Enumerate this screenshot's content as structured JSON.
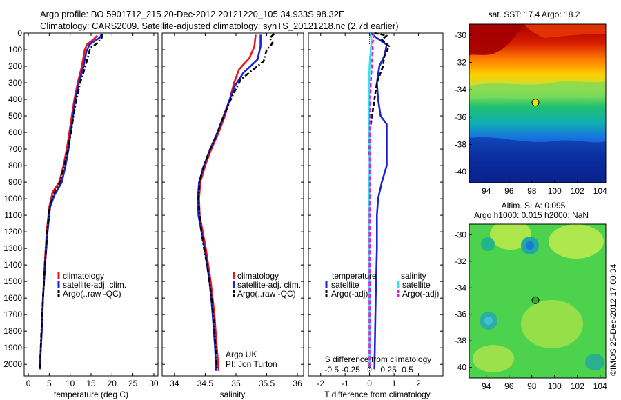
{
  "header": {
    "title_line1": "Argo profile: BO 5901712_215 20-Dec-2012 20121220_105 34.933S 98.32E",
    "title_line2": "Climatology: CARS2009. Satellite-adjusted climatology: synTS_20121218.nc (2.7d earlier)"
  },
  "colors": {
    "climatology": "#e8141e",
    "satellite": "#1a23d4",
    "argo": "#000000",
    "cyan": "#2ee6e6",
    "magenta": "#e61ee6"
  },
  "chart_data": [
    {
      "type": "line",
      "id": "temperature",
      "xlabel": "temperature (deg C)",
      "ylabel": "",
      "xlim": [
        -1,
        31
      ],
      "ylim": [
        2070,
        0
      ],
      "xticks": [
        0,
        5,
        10,
        15,
        20,
        25,
        30
      ],
      "yticks": [
        0,
        100,
        200,
        300,
        400,
        500,
        600,
        700,
        800,
        900,
        1000,
        1100,
        1200,
        1300,
        1400,
        1500,
        1600,
        1700,
        1800,
        1900,
        2000
      ],
      "legend": {
        "placement": "lower-middle",
        "entries": [
          "climatology",
          "satellite-adj. clim.",
          "Argo(..raw -QC)"
        ]
      },
      "series": [
        {
          "name": "climatology",
          "color_key": "climatology",
          "style": "solid",
          "points": [
            [
              16.5,
              15
            ],
            [
              15.5,
              40
            ],
            [
              14,
              70
            ],
            [
              13.5,
              100
            ],
            [
              12.8,
              200
            ],
            [
              11.8,
              300
            ],
            [
              11,
              400
            ],
            [
              10.4,
              500
            ],
            [
              9.8,
              600
            ],
            [
              9.2,
              700
            ],
            [
              8.4,
              800
            ],
            [
              7.4,
              900
            ],
            [
              5.8,
              960
            ],
            [
              5,
              1050
            ],
            [
              4.4,
              1200
            ],
            [
              3.9,
              1400
            ],
            [
              3.5,
              1600
            ],
            [
              3.2,
              1800
            ],
            [
              2.9,
              1950
            ],
            [
              2.8,
              2030
            ]
          ]
        },
        {
          "name": "satellite-adj. clim.",
          "color_key": "satellite",
          "style": "solid",
          "points": [
            [
              17.5,
              5
            ],
            [
              17.2,
              25
            ],
            [
              16,
              45
            ],
            [
              14.6,
              70
            ],
            [
              13.9,
              110
            ],
            [
              13.2,
              200
            ],
            [
              12.1,
              300
            ],
            [
              11.2,
              400
            ],
            [
              10.7,
              500
            ],
            [
              10.1,
              600
            ],
            [
              9.6,
              700
            ],
            [
              8.9,
              800
            ],
            [
              8,
              900
            ],
            [
              6.2,
              980
            ],
            [
              5.2,
              1050
            ],
            [
              4.6,
              1200
            ],
            [
              4,
              1400
            ],
            [
              3.5,
              1600
            ],
            [
              3.2,
              1800
            ],
            [
              2.9,
              1950
            ],
            [
              2.8,
              2030
            ]
          ]
        },
        {
          "name": "Argo(..raw -QC)",
          "color_key": "argo",
          "style": "dashdot",
          "points": [
            [
              17.8,
              5
            ],
            [
              17.5,
              30
            ],
            [
              16.5,
              60
            ],
            [
              14.8,
              90
            ],
            [
              14.2,
              150
            ],
            [
              13.4,
              220
            ],
            [
              12.4,
              300
            ],
            [
              11.5,
              400
            ],
            [
              10.8,
              500
            ],
            [
              10.2,
              600
            ],
            [
              9.5,
              700
            ],
            [
              8.6,
              800
            ],
            [
              7.6,
              900
            ],
            [
              6,
              975
            ],
            [
              5.1,
              1050
            ],
            [
              4.5,
              1200
            ],
            [
              4,
              1400
            ],
            [
              3.5,
              1600
            ],
            [
              3.1,
              1800
            ],
            [
              2.9,
              1950
            ],
            [
              2.8,
              2020
            ]
          ]
        }
      ]
    },
    {
      "type": "line",
      "id": "salinity",
      "xlabel": "salinity",
      "ylabel": "",
      "xlim": [
        33.8,
        36.1
      ],
      "ylim": [
        2070,
        0
      ],
      "xticks": [
        34,
        34.5,
        35,
        35.5,
        36
      ],
      "legend": {
        "placement": "lower-right",
        "entries": [
          "climatology",
          "satellite-adj. clim.",
          "Argo(..raw -QC)"
        ]
      },
      "annotations": [
        "Argo UK",
        "PI: Jon Turton"
      ],
      "series": [
        {
          "name": "climatology",
          "color_key": "climatology",
          "style": "solid",
          "points": [
            [
              35.32,
              10
            ],
            [
              35.3,
              80
            ],
            [
              35.22,
              150
            ],
            [
              35.05,
              220
            ],
            [
              34.97,
              300
            ],
            [
              34.9,
              400
            ],
            [
              34.82,
              500
            ],
            [
              34.72,
              600
            ],
            [
              34.6,
              700
            ],
            [
              34.5,
              800
            ],
            [
              34.42,
              900
            ],
            [
              34.4,
              1000
            ],
            [
              34.41,
              1100
            ],
            [
              34.46,
              1200
            ],
            [
              34.51,
              1300
            ],
            [
              34.55,
              1400
            ],
            [
              34.59,
              1500
            ],
            [
              34.62,
              1600
            ],
            [
              34.65,
              1700
            ],
            [
              34.67,
              1800
            ],
            [
              34.69,
              1900
            ],
            [
              34.72,
              2040
            ]
          ]
        },
        {
          "name": "satellite-adj. clim.",
          "color_key": "satellite",
          "style": "solid",
          "points": [
            [
              35.4,
              10
            ],
            [
              35.4,
              80
            ],
            [
              35.35,
              160
            ],
            [
              35.12,
              240
            ],
            [
              34.98,
              320
            ],
            [
              34.9,
              400
            ],
            [
              34.8,
              500
            ],
            [
              34.7,
              600
            ],
            [
              34.58,
              700
            ],
            [
              34.48,
              800
            ],
            [
              34.4,
              900
            ],
            [
              34.38,
              1000
            ],
            [
              34.39,
              1100
            ],
            [
              34.44,
              1200
            ],
            [
              34.49,
              1300
            ],
            [
              34.53,
              1400
            ],
            [
              34.57,
              1500
            ],
            [
              34.6,
              1600
            ],
            [
              34.62,
              1700
            ],
            [
              34.64,
              1800
            ],
            [
              34.66,
              1900
            ],
            [
              34.68,
              2040
            ]
          ]
        },
        {
          "name": "Argo(..raw -QC)",
          "color_key": "argo",
          "style": "dashdot",
          "points": [
            [
              35.62,
              5
            ],
            [
              35.55,
              30
            ],
            [
              35.6,
              60
            ],
            [
              35.5,
              100
            ],
            [
              35.45,
              170
            ],
            [
              35.28,
              220
            ],
            [
              35.08,
              280
            ],
            [
              34.98,
              350
            ],
            [
              34.88,
              430
            ],
            [
              34.78,
              520
            ],
            [
              34.68,
              620
            ],
            [
              34.56,
              720
            ],
            [
              34.46,
              820
            ],
            [
              34.41,
              900
            ],
            [
              34.39,
              1000
            ],
            [
              34.41,
              1100
            ],
            [
              34.44,
              1200
            ],
            [
              34.48,
              1300
            ],
            [
              34.53,
              1400
            ],
            [
              34.57,
              1500
            ],
            [
              34.6,
              1600
            ],
            [
              34.63,
              1700
            ],
            [
              34.65,
              1800
            ],
            [
              34.67,
              1900
            ],
            [
              34.69,
              2030
            ]
          ]
        }
      ]
    },
    {
      "type": "line",
      "id": "difference",
      "xlabel": "T difference from climatology",
      "xlabel_top": "S difference from climatology",
      "xlim": [
        -2.5,
        3
      ],
      "ylim": [
        2070,
        0
      ],
      "xticks": [
        -2,
        -1,
        0,
        1,
        2
      ],
      "xticks_top_labels": [
        "-0.5",
        "-0.25",
        "0",
        "0.25",
        "0.5"
      ],
      "legend": {
        "placement": "lower",
        "headers": [
          "temperature",
          "salinity"
        ],
        "entries": [
          "satellite",
          "Argo(-adj)",
          "satellite",
          "Argo(-adj)"
        ]
      },
      "zero_line": true,
      "series": [
        {
          "name": "temperature satellite",
          "color_key": "satellite",
          "style": "solid",
          "points": [
            [
              0.05,
              0
            ],
            [
              0.3,
              30
            ],
            [
              0.7,
              70
            ],
            [
              0.6,
              140
            ],
            [
              0.4,
              200
            ],
            [
              0.3,
              300
            ],
            [
              0.35,
              400
            ],
            [
              0.45,
              500
            ],
            [
              0.7,
              550
            ],
            [
              0.7,
              800
            ],
            [
              0.5,
              900
            ],
            [
              0.35,
              1000
            ],
            [
              0.3,
              1100
            ],
            [
              0.3,
              1300
            ],
            [
              0.25,
              1600
            ],
            [
              0.2,
              2030
            ]
          ]
        },
        {
          "name": "temperature Argo(-adj)",
          "color_key": "argo",
          "style": "dashed",
          "points": [
            [
              0.2,
              0
            ],
            [
              0.7,
              15
            ],
            [
              0.5,
              40
            ],
            [
              0.8,
              80
            ],
            [
              0.6,
              140
            ],
            [
              0.55,
              200
            ],
            [
              0.3,
              300
            ],
            [
              0.2,
              400
            ],
            [
              0.1,
              500
            ],
            [
              0.0,
              600
            ],
            [
              -0.02,
              700
            ],
            [
              0.02,
              800
            ],
            [
              0.0,
              900
            ],
            [
              0.0,
              1000
            ],
            [
              0.0,
              1200
            ],
            [
              0.0,
              1400
            ],
            [
              0.0,
              1600
            ],
            [
              0.0,
              1800
            ],
            [
              0.0,
              2020
            ]
          ]
        },
        {
          "name": "salinity satellite",
          "color_key": "cyan",
          "style": "solid",
          "points": [
            [
              0.02,
              0
            ],
            [
              0.08,
              40
            ],
            [
              0.05,
              100
            ],
            [
              0.0,
              200
            ],
            [
              -0.02,
              300
            ],
            [
              -0.02,
              400
            ],
            [
              -0.02,
              500
            ],
            [
              -0.01,
              600
            ],
            [
              0.0,
              700
            ],
            [
              0.0,
              800
            ],
            [
              -0.01,
              900
            ],
            [
              -0.02,
              1000
            ],
            [
              -0.02,
              1100
            ],
            [
              -0.03,
              1200
            ],
            [
              -0.02,
              1400
            ],
            [
              -0.01,
              1600
            ],
            [
              0.0,
              1800
            ],
            [
              0.0,
              2020
            ]
          ]
        },
        {
          "name": "salinity Argo(-adj)",
          "color_key": "magenta",
          "style": "dashed",
          "points": [
            [
              0.12,
              5
            ],
            [
              0.18,
              30
            ],
            [
              0.12,
              60
            ],
            [
              0.13,
              100
            ],
            [
              0.11,
              150
            ],
            [
              0.09,
              200
            ],
            [
              0.05,
              300
            ],
            [
              0.03,
              400
            ],
            [
              0.02,
              500
            ],
            [
              0.01,
              600
            ],
            [
              0.01,
              800
            ],
            [
              0.02,
              1000
            ],
            [
              0.0,
              1100
            ],
            [
              0.0,
              1200
            ],
            [
              0.0,
              1400
            ],
            [
              0.0,
              1600
            ],
            [
              0.0,
              1800
            ],
            [
              0.0,
              2020
            ]
          ]
        }
      ]
    },
    {
      "type": "heatmap",
      "id": "sst_map",
      "title": "sat. SST: 17.4 Argo: 18.2",
      "xlim": [
        92.5,
        104.5
      ],
      "ylim": [
        -40.8,
        -29.2
      ],
      "xticks": [
        94,
        96,
        98,
        100,
        102,
        104
      ],
      "yticks": [
        -30,
        -32,
        -34,
        -36,
        -38,
        -40
      ],
      "marker": {
        "lon": 98.32,
        "lat": -34.933
      }
    },
    {
      "type": "heatmap",
      "id": "sla_map",
      "title": "Altim. SLA: 0.095",
      "subtitle": "Argo h1000: 0.015 h2000: NaN",
      "xlim": [
        92.5,
        104.5
      ],
      "ylim": [
        -40.8,
        -29.2
      ],
      "xticks": [
        94,
        96,
        98,
        100,
        102,
        104
      ],
      "yticks": [
        -30,
        -32,
        -34,
        -36,
        -38,
        -40
      ],
      "marker": {
        "lon": 98.32,
        "lat": -34.933
      }
    }
  ],
  "footer": {
    "stamp": "©IMOS 25-Dec-2012 17:00:34"
  }
}
